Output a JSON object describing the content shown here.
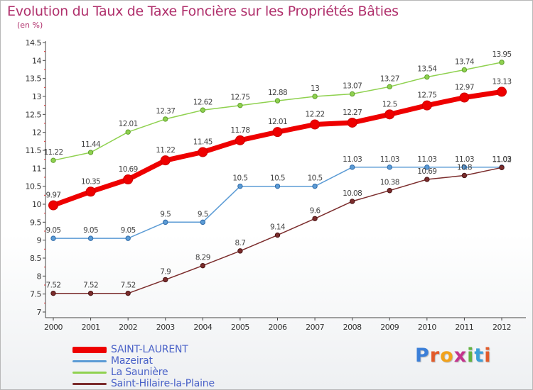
{
  "title": "Evolution du Taux de Taxe Foncière sur les Propriétés Bâties",
  "subtitle": "(en %)",
  "logo": {
    "text": "Proxiti",
    "letters": [
      "P",
      "r",
      "o",
      "x",
      "i",
      "t",
      "i"
    ],
    "colors": [
      "#3b7fd8",
      "#e25b2a",
      "#f2a21b",
      "#c4348d",
      "#63b341",
      "#3b9fd8",
      "#e25b2a"
    ]
  },
  "chart_data": {
    "type": "line",
    "x": [
      "2000",
      "2001",
      "2002",
      "2003",
      "2004",
      "2005",
      "2006",
      "2007",
      "2008",
      "2009",
      "2010",
      "2011",
      "2012"
    ],
    "ylim": [
      7,
      14.5
    ],
    "yticks": [
      "7",
      "7.5",
      "8",
      "8.5",
      "9",
      "9.5",
      "10",
      "10.5",
      "11",
      "11.5",
      "12",
      "12.5",
      "13",
      "13.5",
      "14",
      "14.5"
    ],
    "grid": false,
    "legend_position": "bottom-left",
    "series": [
      {
        "name": "SAINT-LAURENT",
        "color": "#ee0000",
        "values": [
          9.97,
          10.35,
          10.69,
          11.22,
          11.45,
          11.78,
          12.01,
          12.22,
          12.27,
          12.5,
          12.75,
          12.97,
          13.13
        ],
        "labels": [
          "9.97",
          "10.35",
          "10.69",
          "11.22",
          "11.45",
          "11.78",
          "12.01",
          "12.22",
          "12.27",
          "12.5",
          "12.75",
          "12.97",
          "13.13"
        ]
      },
      {
        "name": "Mazeirat",
        "color": "#5b9bd5",
        "values": [
          9.05,
          9.05,
          9.05,
          9.5,
          9.5,
          10.5,
          10.5,
          10.5,
          11.03,
          11.03,
          11.03,
          11.03,
          11.03
        ],
        "labels": [
          "9.05",
          "9.05",
          "9.05",
          "9.5",
          "9.5",
          "10.5",
          "10.5",
          "10.5",
          "11.03",
          "11.03",
          "11.03",
          "11.03",
          "11.03"
        ]
      },
      {
        "name": "La Saunière",
        "color": "#8fd14f",
        "values": [
          11.22,
          11.44,
          12.01,
          12.37,
          12.62,
          12.75,
          12.88,
          13,
          13.07,
          13.27,
          13.54,
          13.74,
          13.95
        ],
        "labels": [
          "11.22",
          "11.44",
          "12.01",
          "12.37",
          "12.62",
          "12.75",
          "12.88",
          "13",
          "13.07",
          "13.27",
          "13.54",
          "13.74",
          "13.95"
        ]
      },
      {
        "name": "Saint-Hilaire-la-Plaine",
        "color": "#7b2c2c",
        "values": [
          7.52,
          7.52,
          7.52,
          7.9,
          8.29,
          8.7,
          9.14,
          9.6,
          10.08,
          10.38,
          10.69,
          10.8,
          11.02
        ],
        "labels": [
          "7.52",
          "7.52",
          "7.52",
          "7.9",
          "8.29",
          "8.7",
          "9.14",
          "9.6",
          "10.08",
          "10.38",
          "10.69",
          "10.8",
          "11.02"
        ]
      }
    ]
  }
}
